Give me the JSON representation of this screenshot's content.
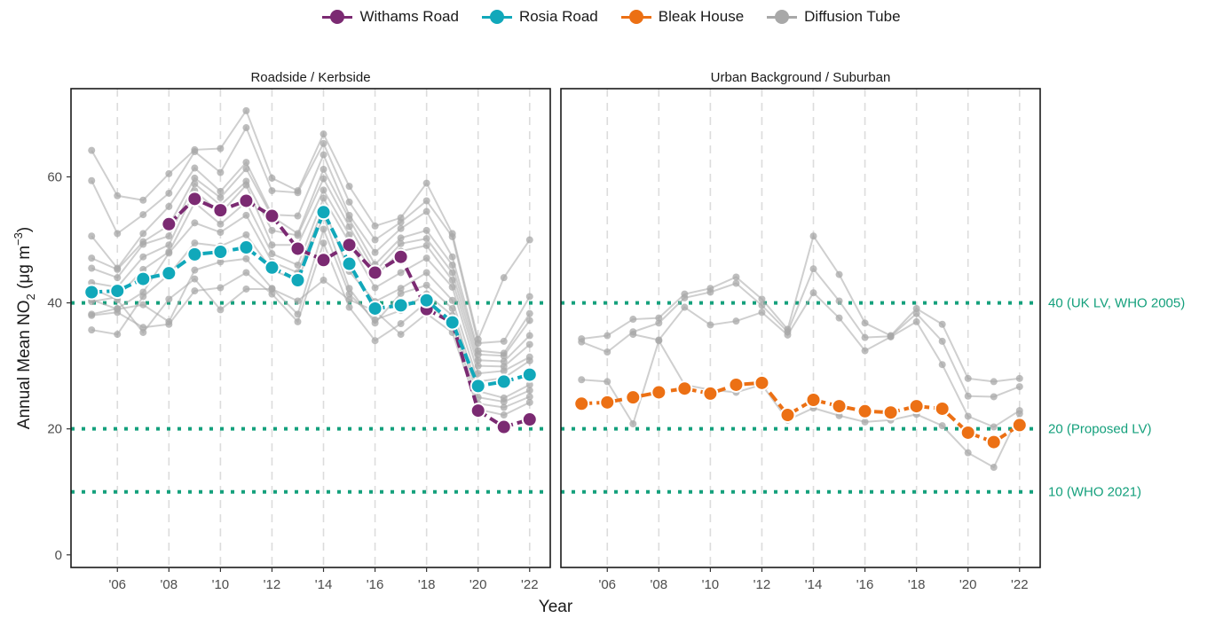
{
  "chart_data": {
    "type": "line",
    "xlabel": "Year",
    "ylabel_main": "Annual Mean NO",
    "ylabel_sub": "2",
    "ylabel_unit": " (μg m",
    "ylabel_sup": "−3",
    "ylabel_close": ")",
    "ylim": [
      -2,
      74
    ],
    "xlim": [
      2004.2,
      2022.8
    ],
    "yticks": [
      0,
      20,
      40,
      60
    ],
    "xticks": [
      2006,
      2008,
      2010,
      2012,
      2014,
      2016,
      2018,
      2020,
      2022
    ],
    "xtick_labels": [
      "'06",
      "'08",
      "'10",
      "'12",
      "'14",
      "'16",
      "'18",
      "'20",
      "'22"
    ],
    "grid": "dashed vertical gridlines at x ticks",
    "legend_position": "top",
    "legend": [
      {
        "label": "Withams Road",
        "color": "#7b2a72"
      },
      {
        "label": "Rosia Road",
        "color": "#11a8ba"
      },
      {
        "label": "Bleak House",
        "color": "#ec7014"
      },
      {
        "label": "Diffusion Tube",
        "color": "#a8a8a8"
      }
    ],
    "reference_lines": [
      {
        "value": 40,
        "label": "40 (UK LV, WHO 2005)",
        "color": "#14a07c"
      },
      {
        "value": 20,
        "label": "20 (Proposed LV)",
        "color": "#14a07c"
      },
      {
        "value": 10,
        "label": "10 (WHO 2021)",
        "color": "#14a07c"
      }
    ],
    "panels": [
      {
        "title": "Roadside / Kerbside",
        "series": [
          {
            "name": "Withams Road",
            "color": "#7b2a72",
            "x": [
              2008,
              2009,
              2010,
              2011,
              2012,
              2013,
              2014,
              2015,
              2016,
              2017,
              2018,
              2019,
              2020,
              2021,
              2022
            ],
            "y": [
              52.5,
              56.5,
              54.7,
              56.2,
              53.8,
              48.6,
              46.8,
              49.2,
              44.8,
              47.3,
              39.0,
              36.9,
              22.9,
              20.3,
              21.5
            ]
          },
          {
            "name": "Rosia Road",
            "color": "#11a8ba",
            "x": [
              2005,
              2006,
              2007,
              2008,
              2009,
              2010,
              2011,
              2012,
              2013,
              2014,
              2015,
              2016,
              2017,
              2018,
              2019,
              2020,
              2021,
              2022
            ],
            "y": [
              41.7,
              41.9,
              43.8,
              44.7,
              47.7,
              48.1,
              48.8,
              45.6,
              43.6,
              54.4,
              46.2,
              39.1,
              39.6,
              40.4,
              36.9,
              26.8,
              27.5,
              28.6
            ]
          },
          {
            "name": "Diffusion Tube",
            "color": "#a8a8a8",
            "tubes": [
              [
                64.2,
                57.0,
                56.3,
                60.5,
                64.3,
                64.5,
                70.5,
                59.8,
                57.8,
                66.8,
                58.5,
                52.2,
                53.5,
                59.0,
                51.0,
                34.2,
                44.0,
                50.0
              ],
              [
                59.4,
                51.0,
                54.0,
                57.4,
                64.0,
                60.7,
                67.8,
                57.8,
                57.5,
                65.3,
                56.0,
                50.0,
                52.8,
                56.2,
                50.5,
                33.6,
                33.9,
                41.0
              ],
              [
                50.6,
                45.5,
                51.0,
                55.3,
                61.4,
                57.7,
                62.3,
                54.0,
                53.8,
                63.5,
                53.9,
                48.0,
                51.8,
                54.5,
                47.3,
                32.4,
                32.0,
                38.3
              ],
              [
                47.1,
                45.3,
                49.7,
                52.3,
                59.8,
                56.7,
                61.3,
                53.7,
                51.0,
                61.2,
                53.3,
                46.1,
                50.3,
                51.5,
                46.0,
                31.8,
                31.6,
                37.2
              ],
              [
                45.5,
                44.0,
                49.3,
                50.6,
                58.9,
                55.5,
                59.3,
                51.5,
                50.7,
                59.7,
                52.1,
                45.0,
                49.4,
                50.2,
                44.8,
                30.9,
                30.7,
                34.8
              ],
              [
                43.2,
                42.5,
                47.3,
                49.2,
                57.8,
                54.2,
                58.7,
                49.2,
                49.2,
                57.9,
                50.8,
                44.2,
                48.2,
                49.1,
                43.6,
                30.0,
                29.9,
                33.4
              ],
              [
                40.2,
                40.9,
                45.3,
                48.1,
                55.9,
                52.5,
                56.0,
                47.8,
                46.0,
                56.6,
                49.6,
                42.4,
                44.8,
                47.1,
                42.5,
                28.8,
                29.2,
                31.4
              ],
              [
                38.2,
                39.1,
                41.7,
                47.9,
                52.7,
                51.2,
                53.9,
                46.5,
                44.8,
                55.1,
                45.0,
                40.2,
                42.3,
                44.8,
                40.4,
                27.5,
                28.1,
                30.8
              ],
              [
                35.7,
                35.0,
                41.0,
                44.5,
                49.5,
                49.0,
                50.8,
                45.2,
                43.6,
                53.8,
                42.3,
                36.8,
                41.5,
                42.8,
                39.1,
                26.0,
                24.9,
                27.0
              ],
              [
                40.5,
                39.0,
                39.7,
                37.0,
                45.2,
                46.5,
                47.0,
                42.3,
                38.2,
                51.7,
                41.4,
                37.3,
                38.8,
                41.4,
                38.0,
                25.0,
                24.3,
                26.1
              ],
              [
                38.0,
                38.5,
                36.1,
                36.6,
                41.9,
                42.4,
                44.8,
                41.4,
                37.0,
                49.5,
                39.3,
                34.0,
                36.7,
                40.1,
                36.5,
                24.0,
                23.4,
                25.1
              ],
              [
                42.3,
                40.5,
                35.3,
                40.6,
                43.8,
                38.9,
                42.2,
                42.2,
                40.3,
                43.6,
                40.5,
                38.7,
                35.0,
                38.3,
                35.3,
                23.1,
                22.2,
                24.2
              ]
            ]
          }
        ]
      },
      {
        "title": "Urban Background / Suburban",
        "series": [
          {
            "name": "Bleak House",
            "color": "#ec7014",
            "x": [
              2005,
              2006,
              2007,
              2008,
              2009,
              2010,
              2011,
              2012,
              2013,
              2014,
              2015,
              2016,
              2017,
              2018,
              2019,
              2020,
              2021,
              2022
            ],
            "y": [
              24.0,
              24.2,
              25.0,
              25.8,
              26.4,
              25.6,
              27.0,
              27.3,
              22.2,
              24.6,
              23.6,
              22.8,
              22.6,
              23.6,
              23.2,
              19.4,
              17.9,
              20.6
            ]
          },
          {
            "name": "Diffusion Tube",
            "color": "#a8a8a8",
            "tubes": [
              [
                34.3,
                34.8,
                37.4,
                37.6,
                41.4,
                42.3,
                44.1,
                40.6,
                35.8,
                50.6,
                44.5,
                36.8,
                34.8,
                39.1,
                36.6,
                28.0,
                27.5,
                28.0
              ],
              [
                33.8,
                32.2,
                35.4,
                36.8,
                40.8,
                41.7,
                43.1,
                39.6,
                35.4,
                45.4,
                40.3,
                34.5,
                34.7,
                38.3,
                33.9,
                25.2,
                25.1,
                26.7
              ],
              [
                null,
                null,
                35.0,
                34.1,
                39.3,
                36.5,
                37.1,
                38.5,
                34.9,
                41.6,
                37.6,
                32.4,
                34.6,
                37.0,
                30.2,
                22.0,
                20.3,
                22.9
              ],
              [
                27.8,
                27.5,
                20.8,
                34.0,
                27.0,
                26.2,
                25.8,
                27.0,
                21.4,
                23.3,
                22.1,
                21.1,
                21.4,
                22.3,
                20.5,
                16.2,
                13.9,
                22.4
              ]
            ]
          }
        ]
      }
    ]
  }
}
